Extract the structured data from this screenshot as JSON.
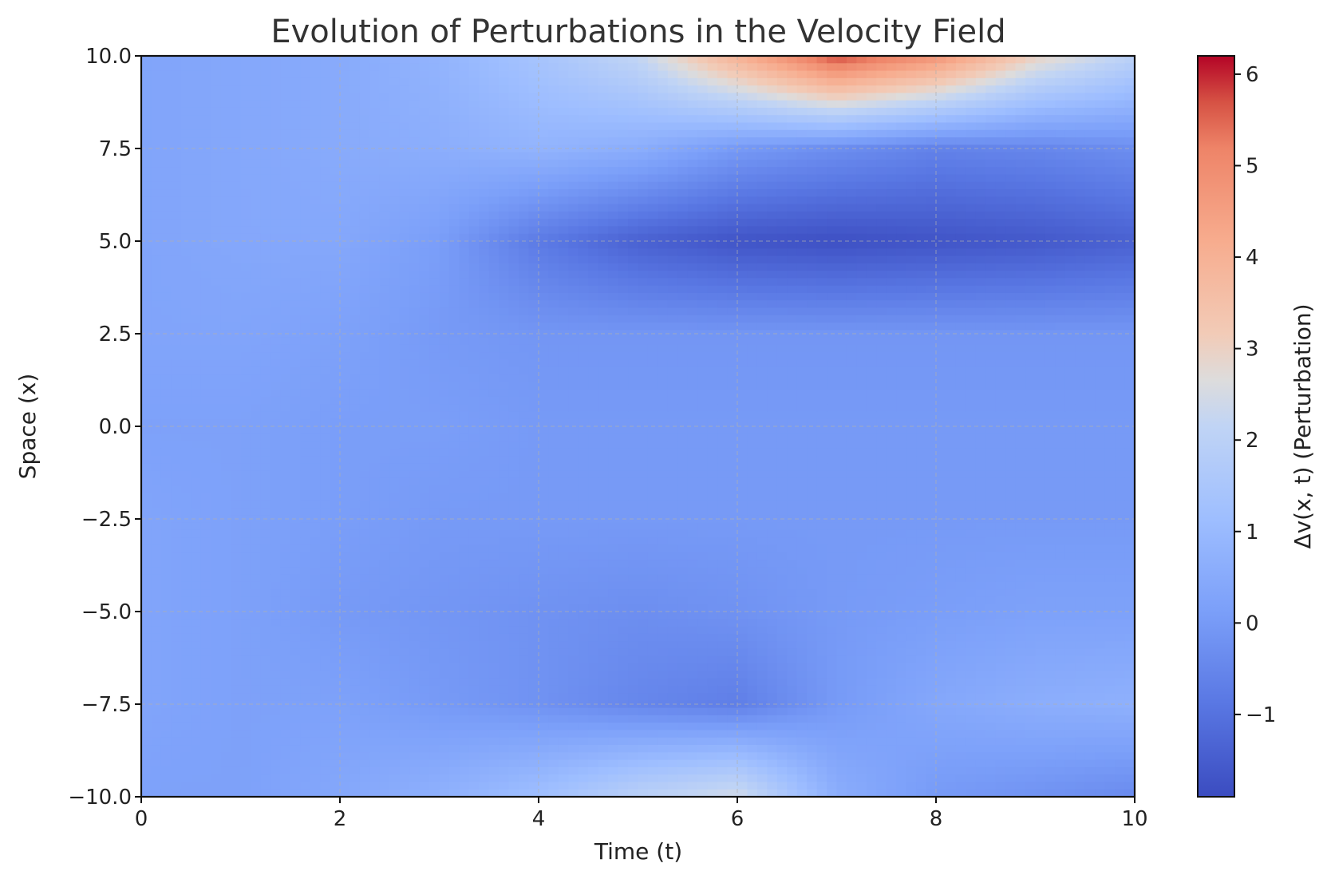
{
  "chart_data": {
    "type": "heatmap",
    "title": "Evolution of Perturbations in the Velocity Field",
    "xlabel": "Time (t)",
    "ylabel": "Space (x)",
    "colorbar_label": "Δv(x, t) (Perturbation)",
    "colormap": "coolwarm",
    "xlim": [
      0,
      10
    ],
    "ylim": [
      -10,
      10
    ],
    "clim": [
      -1.9,
      6.2
    ],
    "grid": true,
    "x_ticks": [
      0,
      2,
      4,
      6,
      8,
      10
    ],
    "x_tick_labels": [
      "0",
      "2",
      "4",
      "6",
      "8",
      "10"
    ],
    "y_ticks": [
      -10,
      -7.5,
      -5,
      -2.5,
      0,
      2.5,
      5,
      7.5,
      10
    ],
    "y_tick_labels": [
      "−10.0",
      "−7.5",
      "−5.0",
      "−2.5",
      "0.0",
      "2.5",
      "5.0",
      "7.5",
      "10.0"
    ],
    "colorbar_ticks": [
      -1,
      0,
      1,
      2,
      3,
      4,
      5,
      6
    ],
    "colorbar_tick_labels": [
      "−1",
      "0",
      "1",
      "2",
      "3",
      "4",
      "5",
      "6"
    ],
    "t": [
      0,
      1,
      2,
      3,
      4,
      5,
      6,
      7,
      8,
      9,
      10
    ],
    "x": [
      -10,
      -7.5,
      -5,
      -2.5,
      0,
      2.5,
      5,
      7.5,
      10
    ],
    "z": [
      [
        0.2,
        0.2,
        0.4,
        0.7,
        1.2,
        2.0,
        2.5,
        0.6,
        0.0,
        -0.2,
        -0.4
      ],
      [
        0.3,
        0.2,
        0.2,
        0.0,
        -0.2,
        -0.5,
        -0.7,
        0.0,
        0.4,
        0.6,
        0.7
      ],
      [
        0.3,
        0.2,
        0.0,
        -0.1,
        -0.2,
        -0.3,
        -0.2,
        0.0,
        0.1,
        0.2,
        0.2
      ],
      [
        0.3,
        0.2,
        0.1,
        0.0,
        0.0,
        0.0,
        0.0,
        0.0,
        0.0,
        0.0,
        0.0
      ],
      [
        0.2,
        0.2,
        0.1,
        0.1,
        0.0,
        0.0,
        0.0,
        0.0,
        0.0,
        0.0,
        0.0
      ],
      [
        0.3,
        0.3,
        0.2,
        0.0,
        -0.1,
        -0.1,
        -0.1,
        -0.1,
        -0.1,
        -0.1,
        -0.1
      ],
      [
        0.3,
        0.4,
        0.4,
        0.1,
        -0.8,
        -1.4,
        -1.7,
        -1.8,
        -1.7,
        -1.6,
        -1.4
      ],
      [
        0.3,
        0.4,
        0.5,
        0.6,
        0.8,
        0.6,
        0.0,
        -0.3,
        -0.6,
        -0.5,
        -0.3
      ],
      [
        0.3,
        0.4,
        0.5,
        0.8,
        1.4,
        2.2,
        4.0,
        5.8,
        4.8,
        3.0,
        2.0
      ]
    ]
  }
}
